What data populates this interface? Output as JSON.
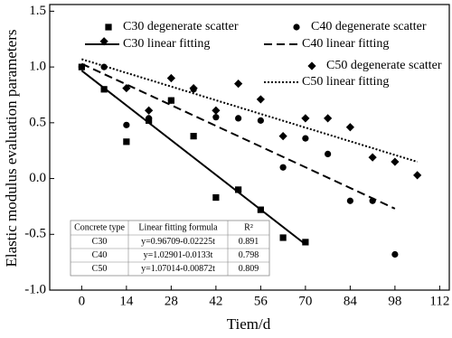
{
  "chart_data": {
    "type": "scatter",
    "xlabel": "Tiem/d",
    "ylabel": "Elastic modulus evaluation parameters",
    "xlim": [
      -10,
      115
    ],
    "xticks": [
      0,
      14,
      28,
      42,
      56,
      70,
      84,
      98,
      112
    ],
    "ylim": [
      -1.0,
      1.56
    ],
    "yticks": [
      {
        "value": -1.0,
        "label": "-1.0"
      },
      -0.5,
      {
        "value": 0,
        "label": "0.0"
      },
      0.5,
      {
        "value": 1.0,
        "label": "1.0"
      },
      1.5
    ],
    "series": [
      {
        "name": "C30 degenerate scatter",
        "color": "#000000",
        "marker": "square",
        "x": [
          0,
          7,
          14,
          21,
          28,
          35,
          42,
          49,
          56,
          63,
          70
        ],
        "values": [
          1.0,
          0.8,
          0.33,
          0.52,
          0.7,
          0.38,
          -0.17,
          -0.1,
          -0.28,
          -0.53,
          -0.57
        ]
      },
      {
        "name": "C40 degenerate scatter",
        "color": "#000000",
        "marker": "circle",
        "x": [
          0,
          7,
          14,
          21,
          28,
          35,
          42,
          49,
          56,
          63,
          70,
          77,
          84,
          91,
          98
        ],
        "values": [
          1.0,
          1.0,
          0.48,
          0.54,
          0.7,
          0.8,
          0.55,
          0.54,
          0.52,
          0.1,
          0.36,
          0.22,
          -0.2,
          -0.2,
          -0.68
        ]
      },
      {
        "name": "C30 linear fitting",
        "color": "#000000",
        "line": "solid",
        "x": [
          0,
          70
        ],
        "values": [
          0.967,
          -0.59
        ]
      },
      {
        "name": "C40 linear fitting",
        "color": "#000000",
        "line": "dashed",
        "x": [
          0,
          98
        ],
        "values": [
          1.029,
          -0.27
        ]
      },
      {
        "name": "C50 degenerate scatter",
        "color": "#000000",
        "marker": "diamond",
        "x": [
          7,
          14,
          21,
          28,
          35,
          42,
          49,
          56,
          63,
          70,
          77,
          84,
          91,
          98,
          105
        ],
        "values": [
          1.23,
          0.81,
          0.61,
          0.9,
          0.81,
          0.61,
          0.85,
          0.71,
          0.38,
          0.54,
          0.54,
          0.46,
          0.19,
          0.15,
          0.03
        ]
      },
      {
        "name": "C50 linear fitting",
        "color": "#000000",
        "line": "dotted",
        "x": [
          0,
          105
        ],
        "values": [
          1.07,
          0.15
        ]
      }
    ],
    "table": {
      "header": [
        "Concrete type",
        "Linear fitting formula",
        "R²"
      ],
      "rows": [
        [
          "C30",
          "y=0.96709-0.02225t",
          0.891
        ],
        [
          "C40",
          "y=1.02901-0.0133t",
          0.798
        ],
        [
          "C50",
          "y=1.07014-0.00872t",
          0.809
        ]
      ]
    }
  }
}
